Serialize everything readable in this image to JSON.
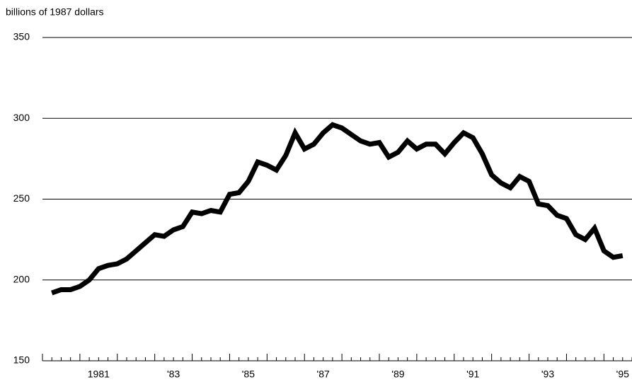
{
  "chart_data": {
    "type": "line",
    "y_label": "billions of 1987 dollars",
    "x": [
      1980.25,
      1980.5,
      1980.75,
      1981,
      1981.25,
      1981.5,
      1981.75,
      1982,
      1982.25,
      1982.5,
      1982.75,
      1983,
      1983.25,
      1983.5,
      1983.75,
      1984,
      1984.25,
      1984.5,
      1984.75,
      1985,
      1985.25,
      1985.5,
      1985.75,
      1986,
      1986.25,
      1986.5,
      1986.75,
      1987,
      1987.25,
      1987.5,
      1987.75,
      1988,
      1988.25,
      1988.5,
      1988.75,
      1989,
      1989.25,
      1989.5,
      1989.75,
      1990,
      1990.25,
      1990.5,
      1990.75,
      1991,
      1991.25,
      1991.5,
      1991.75,
      1992,
      1992.25,
      1992.5,
      1992.75,
      1993,
      1993.25,
      1993.5,
      1993.75,
      1994,
      1994.25,
      1994.5,
      1994.75,
      1995,
      1995.25,
      1995.5
    ],
    "series": [
      {
        "color": "#000000",
        "values": [
          192,
          194,
          194,
          196,
          200,
          207,
          209,
          210,
          213,
          218,
          223,
          228,
          227,
          231,
          233,
          242,
          241,
          243,
          242,
          253,
          254,
          261,
          273,
          271,
          268,
          277,
          291,
          281,
          284,
          291,
          296,
          294,
          290,
          286,
          284,
          285,
          276,
          279,
          286,
          281,
          284,
          284,
          278,
          285,
          291,
          288,
          278,
          265,
          260,
          257,
          264,
          261,
          247,
          246,
          240,
          238,
          228,
          225,
          232,
          218,
          214,
          215
        ]
      }
    ],
    "xlim": [
      1980,
      1995.75
    ],
    "xticks": [
      {
        "value": 1981.5,
        "label": "1981"
      },
      {
        "value": 1983.5,
        "label": "'83"
      },
      {
        "value": 1985.5,
        "label": "'85"
      },
      {
        "value": 1987.5,
        "label": "'87"
      },
      {
        "value": 1989.5,
        "label": "'89"
      },
      {
        "value": 1991.5,
        "label": "'91"
      },
      {
        "value": 1993.5,
        "label": "'93"
      },
      {
        "value": 1995.5,
        "label": "'95"
      }
    ],
    "ylim": [
      150,
      350
    ],
    "yticks": [
      150,
      200,
      250,
      300,
      350
    ],
    "grid": true
  }
}
